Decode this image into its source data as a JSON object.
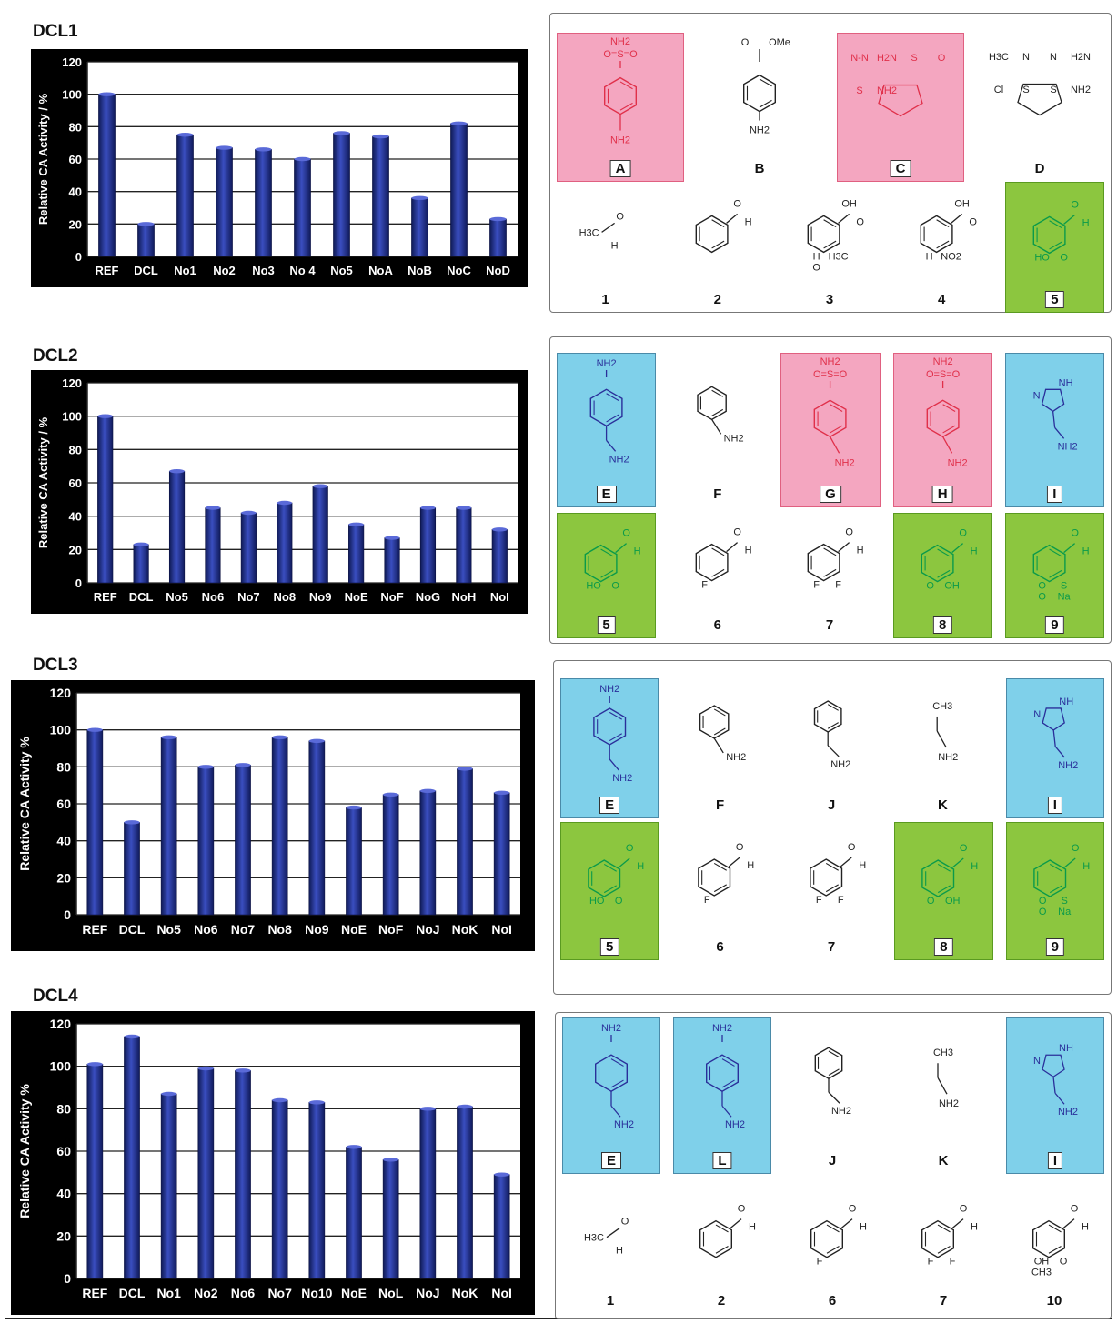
{
  "chart_data": [
    {
      "type": "bar",
      "title": "DCL1",
      "ylabel": "Relative CA Activity / %",
      "ylim": [
        0,
        120
      ],
      "yticks": [
        0,
        20,
        40,
        60,
        80,
        100,
        120
      ],
      "categories": [
        "REF",
        "DCL",
        "No1",
        "No2",
        "No3",
        "No 4",
        "No5",
        "NoA",
        "NoB",
        "NoC",
        "NoD"
      ],
      "values": [
        100,
        20,
        75,
        67,
        66,
        60,
        76,
        74,
        36,
        82,
        23
      ]
    },
    {
      "type": "bar",
      "title": "DCL2",
      "ylabel": "Relative CA Activity / %",
      "ylim": [
        0,
        120
      ],
      "yticks": [
        0,
        20,
        40,
        60,
        80,
        100,
        120
      ],
      "categories": [
        "REF",
        "DCL",
        "No5",
        "No6",
        "No7",
        "No8",
        "No9",
        "NoE",
        "NoF",
        "NoG",
        "NoH",
        "NoI"
      ],
      "values": [
        100,
        23,
        67,
        45,
        42,
        48,
        58,
        35,
        27,
        45,
        45,
        32
      ]
    },
    {
      "type": "bar",
      "title": "DCL3",
      "ylabel": "Relative CA Activity %",
      "ylim": [
        0,
        120
      ],
      "yticks": [
        0,
        20,
        40,
        60,
        80,
        100,
        120
      ],
      "categories": [
        "REF",
        "DCL",
        "No5",
        "No6",
        "No7",
        "No8",
        "No9",
        "NoE",
        "NoF",
        "NoJ",
        "NoK",
        "NoI"
      ],
      "values": [
        100,
        50,
        96,
        80,
        81,
        96,
        94,
        58,
        65,
        67,
        79,
        66
      ]
    },
    {
      "type": "bar",
      "title": "DCL4",
      "ylabel": "Relative CA Activity %",
      "ylim": [
        0,
        120
      ],
      "yticks": [
        0,
        20,
        40,
        60,
        80,
        100,
        120
      ],
      "categories": [
        "REF",
        "DCL",
        "No1",
        "No2",
        "No6",
        "No7",
        "No10",
        "NoE",
        "NoL",
        "NoJ",
        "NoK",
        "NoI"
      ],
      "values": [
        101,
        114,
        87,
        99,
        98,
        84,
        83,
        62,
        56,
        80,
        81,
        49
      ]
    }
  ],
  "colors": {
    "bar": "#1b2a7a",
    "bar_light": "#3a4ec0",
    "pink": "#f4a6c0",
    "blue": "#7fd0ea",
    "green": "#8cc63f"
  },
  "panels": [
    {
      "title": "DCL1",
      "cells": [
        {
          "label": "A",
          "hl": "pink",
          "mol": "sulfanilamide",
          "texts": [
            "NH2",
            "O=S=O",
            "NH2"
          ]
        },
        {
          "label": "B",
          "hl": "",
          "mol": "ester",
          "texts": [
            "O",
            "OMe",
            "NH2"
          ]
        },
        {
          "label": "C",
          "hl": "pink",
          "mol": "thiadiazole",
          "texts": [
            "N-N",
            "H2N",
            "S",
            "O",
            "S",
            "NH2"
          ]
        },
        {
          "label": "D",
          "hl": "",
          "mol": "thiadiazolium",
          "texts": [
            "H3C",
            "N",
            "N",
            "H2N",
            "Cl",
            "S",
            "S",
            "NH2"
          ]
        },
        {
          "label": "1",
          "hl": "",
          "mol": "acetaldehyde",
          "texts": [
            "H3C",
            "O",
            "H"
          ]
        },
        {
          "label": "2",
          "hl": "",
          "mol": "benzaldehyde",
          "texts": [
            "O",
            "H"
          ]
        },
        {
          "label": "3",
          "hl": "",
          "mol": "methoxy",
          "texts": [
            "OH",
            "O",
            "H",
            "H3C",
            "O"
          ]
        },
        {
          "label": "4",
          "hl": "",
          "mol": "nitro",
          "texts": [
            "OH",
            "O",
            "H",
            "NO2"
          ]
        },
        {
          "label": "5",
          "hl": "green",
          "mol": "carboxy",
          "texts": [
            "O",
            "H",
            "HO",
            "O"
          ]
        }
      ]
    },
    {
      "title": "DCL2",
      "cells": [
        {
          "label": "E",
          "hl": "blue",
          "mol": "aminophenethyl",
          "texts": [
            "NH2",
            "NH2"
          ]
        },
        {
          "label": "F",
          "hl": "",
          "mol": "benzylamine",
          "texts": [
            "NH2"
          ]
        },
        {
          "label": "G",
          "hl": "pink",
          "mol": "sulfbenzyl",
          "texts": [
            "NH2",
            "O=S=O",
            "NH2"
          ]
        },
        {
          "label": "H",
          "hl": "pink",
          "mol": "sulfphenethyl",
          "texts": [
            "NH2",
            "O=S=O",
            "NH2"
          ]
        },
        {
          "label": "I",
          "hl": "blue",
          "mol": "histamine",
          "texts": [
            "NH",
            "N",
            "NH2"
          ]
        },
        {
          "label": "5",
          "hl": "green",
          "mol": "carboxy",
          "texts": [
            "O",
            "H",
            "HO",
            "O"
          ]
        },
        {
          "label": "6",
          "hl": "",
          "mol": "fluoro",
          "texts": [
            "O",
            "H",
            "F"
          ]
        },
        {
          "label": "7",
          "hl": "",
          "mol": "difluoro",
          "texts": [
            "O",
            "H",
            "F",
            "F"
          ]
        },
        {
          "label": "8",
          "hl": "green",
          "mol": "phthal",
          "texts": [
            "O",
            "H",
            "O",
            "OH"
          ]
        },
        {
          "label": "9",
          "hl": "green",
          "mol": "sulfonate",
          "texts": [
            "O",
            "H",
            "O",
            "S",
            "O",
            "Na"
          ]
        }
      ]
    },
    {
      "title": "DCL3",
      "cells": [
        {
          "label": "E",
          "hl": "blue",
          "mol": "aminophenethyl",
          "texts": [
            "NH2",
            "NH2"
          ]
        },
        {
          "label": "F",
          "hl": "",
          "mol": "benzylamine",
          "texts": [
            "NH2"
          ]
        },
        {
          "label": "J",
          "hl": "",
          "mol": "phenethyl",
          "texts": [
            "NH2"
          ]
        },
        {
          "label": "K",
          "hl": "",
          "mol": "propyl",
          "texts": [
            "CH3",
            "NH2"
          ]
        },
        {
          "label": "I",
          "hl": "blue",
          "mol": "histamine",
          "texts": [
            "NH",
            "N",
            "NH2"
          ]
        },
        {
          "label": "5",
          "hl": "green",
          "mol": "carboxy",
          "texts": [
            "O",
            "H",
            "HO",
            "O"
          ]
        },
        {
          "label": "6",
          "hl": "",
          "mol": "fluoro",
          "texts": [
            "O",
            "H",
            "F"
          ]
        },
        {
          "label": "7",
          "hl": "",
          "mol": "difluoro",
          "texts": [
            "O",
            "H",
            "F",
            "F"
          ]
        },
        {
          "label": "8",
          "hl": "green",
          "mol": "phthal",
          "texts": [
            "O",
            "H",
            "O",
            "OH"
          ]
        },
        {
          "label": "9",
          "hl": "green",
          "mol": "sulfonate",
          "texts": [
            "O",
            "H",
            "O",
            "S",
            "O",
            "Na"
          ]
        }
      ]
    },
    {
      "title": "DCL4",
      "cells": [
        {
          "label": "E",
          "hl": "blue",
          "mol": "aminophenethyl",
          "texts": [
            "NH2",
            "NH2"
          ]
        },
        {
          "label": "L",
          "hl": "blue",
          "mol": "aminobenzyl",
          "texts": [
            "NH2",
            "NH2"
          ]
        },
        {
          "label": "J",
          "hl": "",
          "mol": "phenethyl",
          "texts": [
            "NH2"
          ]
        },
        {
          "label": "K",
          "hl": "",
          "mol": "propyl",
          "texts": [
            "CH3",
            "NH2"
          ]
        },
        {
          "label": "I",
          "hl": "blue",
          "mol": "histamine",
          "texts": [
            "NH",
            "N",
            "NH2"
          ]
        },
        {
          "label": "1",
          "hl": "",
          "mol": "acetaldehyde",
          "texts": [
            "H3C",
            "O",
            "H"
          ]
        },
        {
          "label": "2",
          "hl": "",
          "mol": "benzaldehyde",
          "texts": [
            "O",
            "H"
          ]
        },
        {
          "label": "6",
          "hl": "",
          "mol": "fluoro",
          "texts": [
            "O",
            "H",
            "F"
          ]
        },
        {
          "label": "7",
          "hl": "",
          "mol": "difluoro",
          "texts": [
            "O",
            "H",
            "F",
            "F"
          ]
        },
        {
          "label": "10",
          "hl": "",
          "mol": "hydroxymethoxy",
          "texts": [
            "O",
            "H",
            "OH",
            "O",
            "CH3"
          ]
        }
      ]
    }
  ]
}
